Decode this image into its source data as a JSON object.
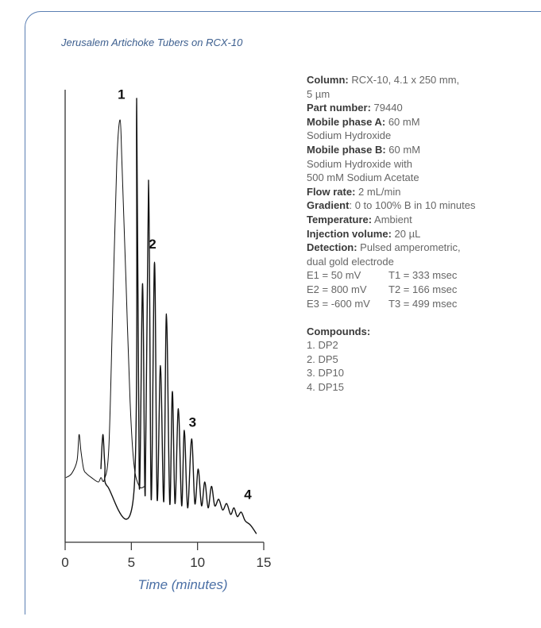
{
  "chart_data": {
    "type": "line",
    "title": "Jerusalem Artichoke Tubers on RCX-10",
    "xlabel": "Time (minutes)",
    "ylabel": "",
    "xlim": [
      0,
      15
    ],
    "xticks": [
      0,
      5,
      10,
      15
    ],
    "grid": false,
    "peaks": [
      {
        "label": "1",
        "compound": "DP2",
        "time": 4.25,
        "height": 0.96
      },
      {
        "label": "2",
        "compound": "DP5",
        "time": 6.6,
        "height": 0.61
      },
      {
        "label": "3",
        "compound": "DP10",
        "time": 9.5,
        "height": 0.2
      },
      {
        "label": "4",
        "compound": "DP15",
        "time": 13.2,
        "height": 0.04
      }
    ],
    "series": [
      {
        "points": [
          [
            0.05,
            0.1
          ],
          [
            0.5,
            0.11
          ],
          [
            0.9,
            0.14
          ],
          [
            1.05,
            0.2
          ],
          [
            1.2,
            0.16
          ],
          [
            1.4,
            0.12
          ],
          [
            1.6,
            0.11
          ],
          [
            2.0,
            0.1
          ],
          [
            2.5,
            0.09
          ],
          [
            2.7,
            0.1
          ],
          [
            2.95,
            0.095
          ],
          [
            3.3,
            0.17
          ],
          [
            3.6,
            0.5
          ],
          [
            3.9,
            0.83
          ],
          [
            4.15,
            0.93
          ],
          [
            4.3,
            0.82
          ],
          [
            4.6,
            0.55
          ],
          [
            4.9,
            0.28
          ],
          [
            5.2,
            0.13
          ],
          [
            5.6,
            0.08
          ],
          [
            6.0,
            0.08
          ]
        ]
      },
      {
        "points": [
          [
            2.7,
            0.12
          ],
          [
            2.85,
            0.2
          ],
          [
            3.0,
            0.13
          ],
          [
            3.2,
            0.08
          ],
          [
            5.2,
            0.07
          ],
          [
            5.4,
            0.98
          ],
          [
            5.6,
            0.08
          ],
          [
            5.85,
            0.55
          ],
          [
            6.05,
            0.06
          ],
          [
            6.3,
            0.79
          ],
          [
            6.5,
            0.05
          ],
          [
            6.75,
            0.6
          ],
          [
            6.95,
            0.05
          ],
          [
            7.2,
            0.36
          ],
          [
            7.45,
            0.045
          ],
          [
            7.65,
            0.48
          ],
          [
            7.9,
            0.04
          ],
          [
            8.1,
            0.3
          ],
          [
            8.3,
            0.04
          ],
          [
            8.55,
            0.26
          ],
          [
            8.8,
            0.035
          ],
          [
            9.0,
            0.21
          ],
          [
            9.25,
            0.03
          ],
          [
            9.55,
            0.19
          ],
          [
            9.8,
            0.04
          ],
          [
            10.05,
            0.12
          ],
          [
            10.3,
            0.035
          ],
          [
            10.55,
            0.09
          ],
          [
            10.8,
            0.03
          ],
          [
            11.05,
            0.08
          ],
          [
            11.3,
            0.035
          ],
          [
            11.6,
            0.05
          ],
          [
            11.9,
            0.025
          ],
          [
            12.2,
            0.04
          ],
          [
            12.5,
            0.015
          ],
          [
            12.75,
            0.03
          ],
          [
            13.0,
            0.01
          ],
          [
            13.3,
            0.02
          ],
          [
            13.6,
            0.0
          ],
          [
            14.0,
            -0.01
          ],
          [
            14.45,
            -0.03
          ]
        ]
      }
    ]
  },
  "info": {
    "column_label": "Column:",
    "column_value": " RCX-10, 4.1 x 250 mm,",
    "column_value_2": "5 µm",
    "part_label": "Part number:",
    "part_value": " 79440",
    "mpa_label": "Mobile phase A:",
    "mpa_value": " 60 mM",
    "mpa_value_2": "Sodium Hydroxide",
    "mpb_label": "Mobile phase B:",
    "mpb_value": " 60 mM",
    "mpb_value_2": "Sodium Hydroxide with",
    "mpb_value_3": "500 mM Sodium Acetate",
    "flow_label": "Flow rate:",
    "flow_value": " 2 mL/min",
    "gradient_label": "Gradient",
    "gradient_value": ": 0 to 100% B in 10 minutes",
    "temp_label": "Temperature:",
    "temp_value": " Ambient",
    "inj_label": "Injection volume:",
    "inj_value": " 20 µL",
    "det_label": "Detection:",
    "det_value": " Pulsed amperometric,",
    "det_value_2": "dual gold electrode",
    "waveform": [
      {
        "e": "E1 = 50 mV",
        "t": "T1 = 333 msec"
      },
      {
        "e": "E2 = 800 mV",
        "t": "T2 = 166 msec"
      },
      {
        "e": "E3 = -600 mV",
        "t": "T3 = 499 msec"
      }
    ],
    "compounds_heading": "Compounds:",
    "compounds": [
      "1. DP2",
      "2. DP5",
      "3. DP10",
      "4. DP15"
    ]
  }
}
